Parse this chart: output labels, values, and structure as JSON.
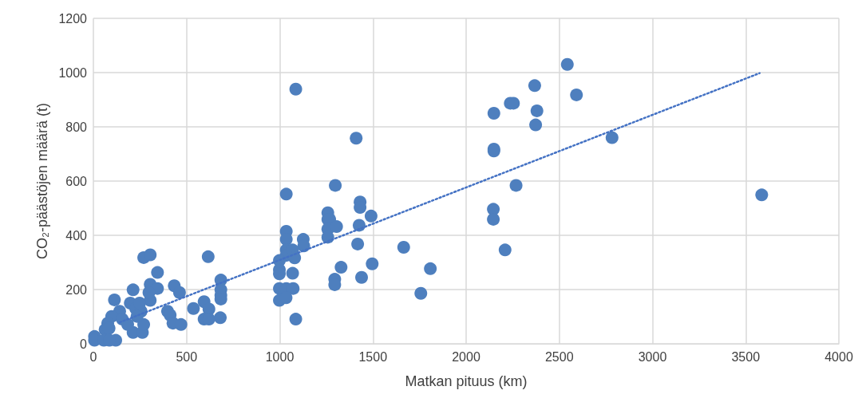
{
  "chart_data": {
    "type": "scatter",
    "xlabel": "Matkan pituus (km)",
    "ylabel": "CO₂-päästöjen määrä (t)",
    "xlim": [
      0,
      4000
    ],
    "xticks": [
      0,
      500,
      1000,
      1500,
      2000,
      2500,
      3000,
      3500,
      4000
    ],
    "ylim": [
      0,
      1200
    ],
    "yticks": [
      0,
      200,
      400,
      600,
      800,
      1000,
      1200
    ],
    "grid": true,
    "marker": "circle",
    "series": [
      {
        "color": "#4e7fbe",
        "x": [
          2543,
          2368,
          2592,
          2237,
          2254,
          2380,
          2373,
          2149,
          2149,
          2149,
          2268,
          2146,
          2146,
          2209,
          2783,
          3586,
          1086,
          1410,
          1298,
          1035,
          1431,
          1431,
          1490,
          1258,
          1258,
          1268,
          1258,
          1305,
          1426,
          1258,
          1035,
          1126,
          1418,
          1665,
          1129,
          1035,
          1035,
          1035,
          1069,
          1080,
          998,
          998,
          998,
          1069,
          998,
          1035,
          1072,
          998,
          1034,
          1086,
          1329,
          1496,
          1295,
          1295,
          1439,
          1757,
          1808,
          270,
          305,
          344,
          305,
          344,
          213,
          113,
          434,
          462,
          616,
          684,
          684,
          684,
          684,
          594,
          537,
          620,
          594,
          620,
          681,
          398,
          412,
          427,
          470,
          305,
          298,
          198,
          227,
          256,
          141,
          98,
          77,
          63,
          84,
          213,
          263,
          270,
          120,
          6,
          6,
          56,
          86,
          155,
          184,
          234,
          248
        ],
        "values": [
          1030,
          952,
          918,
          887,
          887,
          859,
          807,
          850,
          718,
          711,
          584,
          496,
          459,
          346,
          760,
          549,
          939,
          758,
          584,
          552,
          523,
          503,
          471,
          483,
          459,
          459,
          423,
          432,
          437,
          393,
          415,
          385,
          368,
          356,
          361,
          385,
          346,
          326,
          346,
          317,
          307,
          273,
          258,
          260,
          204,
          204,
          204,
          160,
          170,
          91,
          282,
          295,
          238,
          218,
          245,
          186,
          277,
          318,
          328,
          263,
          219,
          204,
          199,
          162,
          214,
          189,
          321,
          235,
          199,
          179,
          165,
          155,
          130,
          128,
          91,
          91,
          96,
          120,
          106,
          76,
          71,
          160,
          189,
          150,
          130,
          120,
          120,
          101,
          76,
          52,
          57,
          42,
          42,
          71,
          13,
          27,
          13,
          13,
          13,
          91,
          71,
          101,
          150
        ]
      },
      {
        "type": "line",
        "color": "#4472c4",
        "marker": "none",
        "line_style": "dotted",
        "x": [
          141,
          3575
        ],
        "values": [
          79,
          998
        ]
      }
    ]
  }
}
